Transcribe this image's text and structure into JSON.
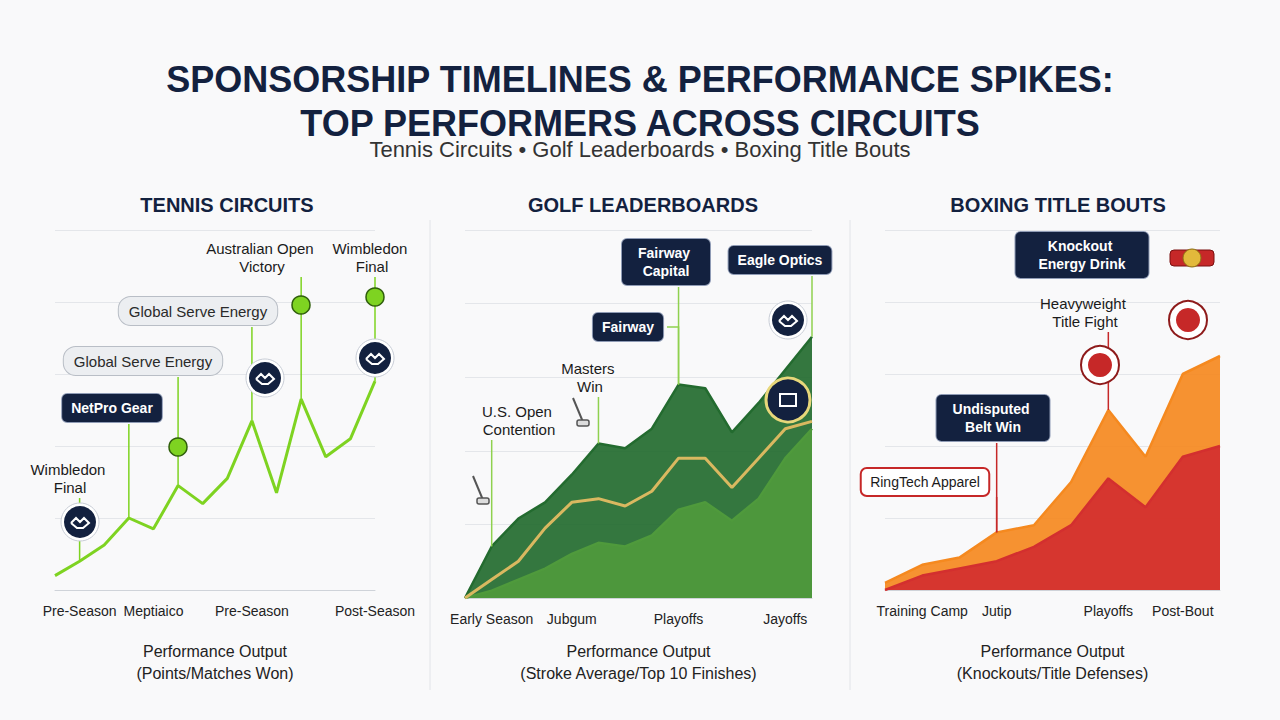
{
  "header": {
    "title": "SPONSORSHIP TIMELINES & PERFORMANCE SPIKES: TOP PERFORMERS ACROSS CIRCUITS",
    "subtitle": "Tennis Circuits • Golf Leaderboards • Boxing Title Bouts"
  },
  "chart_data": [
    {
      "type": "line",
      "title": "TENNIS CIRCUITS",
      "categories": [
        null,
        "Pre-Season",
        null,
        null,
        "Meptiaico",
        null,
        null,
        null,
        "Pre-Season",
        null,
        null,
        null,
        null,
        "Post-Season"
      ],
      "xlabel": "Performance Output\n(Points/Matches Won)",
      "ylim": [
        0,
        100
      ],
      "yticks": [
        0,
        20,
        40,
        60,
        80,
        100
      ],
      "grid": true,
      "tick_labels": "x",
      "series": [
        {
          "color": "#7ed321",
          "values": [
            4,
            8,
            12.5,
            20,
            17,
            29,
            24,
            31,
            47,
            27,
            53,
            37,
            42,
            58
          ]
        }
      ],
      "annotations": [
        {
          "text": "Wimbledon Final",
          "at": 1
        },
        {
          "text": "NetPro Gear",
          "at": 3
        },
        {
          "text": "Global Serve Energy",
          "at": 5
        },
        {
          "text": "Global Serve Energy",
          "at": 8
        },
        {
          "text": "Australian Open Victory",
          "at": 10
        },
        {
          "text": "Wimbledon Final",
          "at": 13
        }
      ]
    },
    {
      "type": "area",
      "title": "GOLF LEADERBOARDS",
      "categories": [
        null,
        "Early Season",
        null,
        null,
        "Jubgum",
        null,
        null,
        null,
        "Playoffs",
        null,
        null,
        null,
        "Jayoffs",
        null
      ],
      "xlabel": "Performance Output\n(Stroke Average/Top 10 Finishes)",
      "ylim": [
        0,
        100
      ],
      "yticks": [
        0,
        20,
        40,
        60,
        80,
        100
      ],
      "grid": true,
      "tick_labels": "x",
      "series": [
        {
          "color": "#236b2f",
          "values": [
            0,
            14,
            21.6,
            26,
            33.5,
            42,
            40.7,
            46,
            58,
            57,
            45,
            53,
            62,
            71
          ]
        },
        {
          "color": "#4f9a3c",
          "values": [
            0,
            2,
            5,
            8,
            12,
            15,
            14,
            17,
            24,
            26,
            21,
            27,
            38,
            46
          ]
        },
        {
          "type": "line",
          "color": "#d9b860",
          "values": [
            0,
            5,
            10,
            19,
            26,
            27,
            25,
            29,
            38,
            38,
            30,
            38,
            46,
            48
          ]
        }
      ],
      "annotations": [
        {
          "text": "U.S. Open Contention",
          "at": 1
        },
        {
          "text": "Masters Win",
          "at": 5
        },
        {
          "text": "Fairway",
          "at": 8
        },
        {
          "text": "Fairway Capital",
          "at": 8
        },
        {
          "text": "Eagle Optics",
          "at": 13
        }
      ]
    },
    {
      "type": "area",
      "title": "BOXING TITLE BOUTS",
      "categories": [
        null,
        "Training Camp",
        null,
        "Jutip",
        null,
        null,
        "Playoffs",
        null,
        "Post-Bout",
        null
      ],
      "xlabel": "Performance Output\n(Knockouts/Title Defenses)",
      "ylim": [
        0,
        100
      ],
      "yticks": [
        0,
        20,
        40,
        60,
        80,
        100
      ],
      "grid": true,
      "tick_labels": "x",
      "series": [
        {
          "color": "#f5891f",
          "values": [
            2,
            7,
            9,
            16,
            18,
            30,
            50,
            37,
            60,
            65
          ]
        },
        {
          "color": "#d32f2f",
          "values": [
            0,
            4,
            6,
            8,
            12,
            18,
            31,
            23,
            37,
            40
          ]
        }
      ],
      "annotations": [
        {
          "text": "RingTech Apparel",
          "at": 3
        },
        {
          "text": "Undisputed Belt Win",
          "at": 3
        },
        {
          "text": "Heavyweight Title Fight",
          "at": 6
        },
        {
          "text": "Knockout Energy Drink",
          "at": 6
        }
      ]
    }
  ]
}
